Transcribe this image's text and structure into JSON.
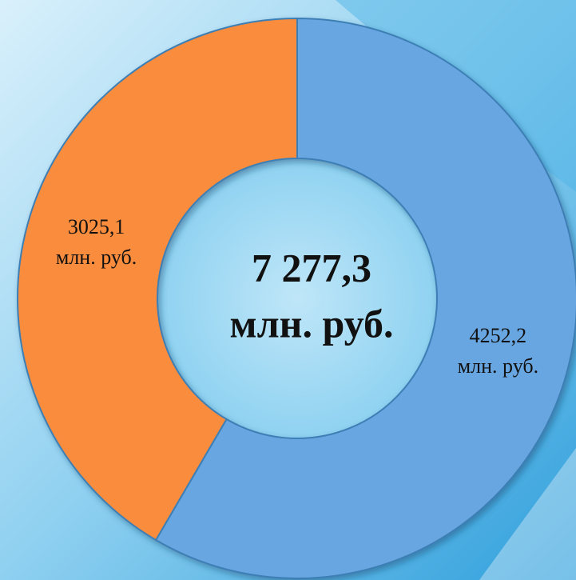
{
  "chart_data": {
    "type": "donut",
    "values": [
      4252.2,
      3025.1
    ],
    "value_labels": [
      [
        "4252,2",
        "млн. руб."
      ],
      [
        "3025,1",
        "млн. руб."
      ]
    ],
    "colors": [
      "#68a6e2",
      "#fa8c3c"
    ],
    "center_label": [
      "7 277,3",
      "млн. руб."
    ]
  }
}
